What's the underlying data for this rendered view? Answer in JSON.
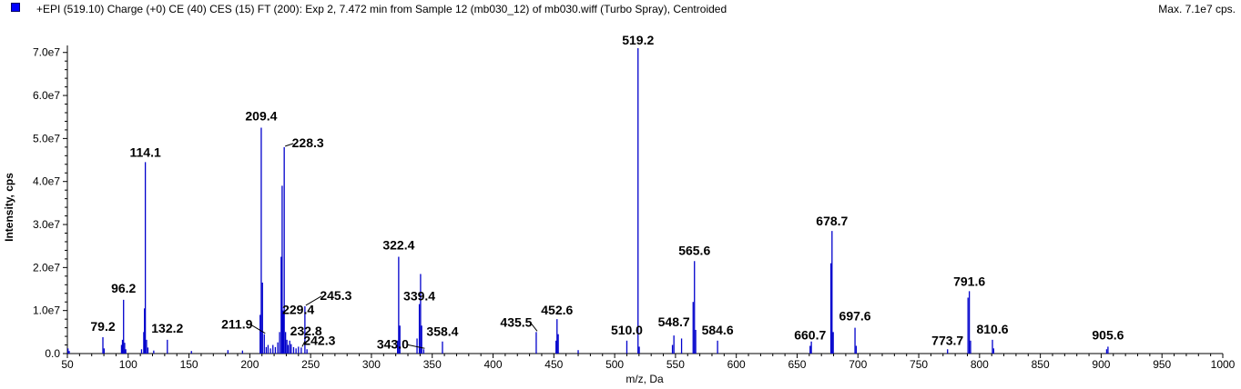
{
  "header": {
    "title": "+EPI (519.10) Charge (+0) CE (40) CES (15) FT (200): Exp 2, 7.472 min from Sample 12 (mb030_12) of mb030.wiff (Turbo Spray), Centroided",
    "max_label": "Max. 7.1e7 cps.",
    "legend_color": "#0000ff"
  },
  "chart_data": {
    "type": "bar",
    "xlabel": "m/z, Da",
    "ylabel": "Intensity, cps",
    "xlim": [
      50,
      1000
    ],
    "ylim": [
      0,
      71000000.0
    ],
    "bar_color": "#0000cc",
    "x_ticks": [
      50,
      100,
      150,
      200,
      250,
      300,
      350,
      400,
      450,
      500,
      550,
      600,
      650,
      700,
      750,
      800,
      850,
      900,
      950,
      1000
    ],
    "x_tick_labels": [
      "50",
      "100",
      "150",
      "200",
      "250",
      "300",
      "350",
      "400",
      "450",
      "500",
      "550",
      "600",
      "650",
      "700",
      "750",
      "800",
      "850",
      "900",
      "950",
      "1000"
    ],
    "y_ticks": [
      0,
      10000000.0,
      20000000.0,
      30000000.0,
      40000000.0,
      50000000.0,
      60000000.0,
      70000000.0
    ],
    "y_tick_labels": [
      "0.0",
      "1.0e7",
      "2.0e7",
      "3.0e7",
      "4.0e7",
      "5.0e7",
      "6.0e7",
      "7.0e7"
    ],
    "peaks": [
      {
        "mz": 50.5,
        "intensity": 1200000.0
      },
      {
        "mz": 51.5,
        "intensity": 600000.0
      },
      {
        "mz": 79.2,
        "intensity": 3800000.0
      },
      {
        "mz": 80.2,
        "intensity": 1200000.0
      },
      {
        "mz": 94.5,
        "intensity": 2000000.0
      },
      {
        "mz": 95.3,
        "intensity": 3200000.0
      },
      {
        "mz": 96.2,
        "intensity": 12500000.0
      },
      {
        "mz": 97.1,
        "intensity": 2500000.0
      },
      {
        "mz": 98.0,
        "intensity": 1000000.0
      },
      {
        "mz": 111.0,
        "intensity": 1000000.0
      },
      {
        "mz": 112.8,
        "intensity": 5000000.0
      },
      {
        "mz": 113.4,
        "intensity": 10500000.0
      },
      {
        "mz": 114.1,
        "intensity": 44500000.0
      },
      {
        "mz": 115.1,
        "intensity": 3200000.0
      },
      {
        "mz": 116.2,
        "intensity": 1400000.0
      },
      {
        "mz": 121.0,
        "intensity": 700000.0
      },
      {
        "mz": 132.2,
        "intensity": 3200000.0
      },
      {
        "mz": 152.0,
        "intensity": 600000.0
      },
      {
        "mz": 182.0,
        "intensity": 800000.0
      },
      {
        "mz": 194.0,
        "intensity": 700000.0
      },
      {
        "mz": 208.5,
        "intensity": 9000000.0
      },
      {
        "mz": 209.4,
        "intensity": 52500000.0
      },
      {
        "mz": 210.4,
        "intensity": 16500000.0
      },
      {
        "mz": 211.9,
        "intensity": 4500000.0
      },
      {
        "mz": 213.5,
        "intensity": 1500000.0
      },
      {
        "mz": 215.0,
        "intensity": 2000000.0
      },
      {
        "mz": 217.0,
        "intensity": 1200000.0
      },
      {
        "mz": 219.0,
        "intensity": 2000000.0
      },
      {
        "mz": 221.0,
        "intensity": 1500000.0
      },
      {
        "mz": 223.0,
        "intensity": 2600000.0
      },
      {
        "mz": 224.5,
        "intensity": 5000000.0
      },
      {
        "mz": 225.8,
        "intensity": 22500000.0
      },
      {
        "mz": 226.6,
        "intensity": 39000000.0
      },
      {
        "mz": 227.4,
        "intensity": 10000000.0
      },
      {
        "mz": 228.3,
        "intensity": 48000000.0
      },
      {
        "mz": 229.4,
        "intensity": 5000000.0
      },
      {
        "mz": 230.5,
        "intensity": 3200000.0
      },
      {
        "mz": 231.5,
        "intensity": 2000000.0
      },
      {
        "mz": 232.8,
        "intensity": 3000000.0
      },
      {
        "mz": 234.0,
        "intensity": 2200000.0
      },
      {
        "mz": 236.0,
        "intensity": 1500000.0
      },
      {
        "mz": 238.0,
        "intensity": 1200000.0
      },
      {
        "mz": 240.0,
        "intensity": 1600000.0
      },
      {
        "mz": 242.3,
        "intensity": 1400000.0
      },
      {
        "mz": 245.3,
        "intensity": 11000000.0
      },
      {
        "mz": 247.0,
        "intensity": 1000000.0
      },
      {
        "mz": 321.5,
        "intensity": 3000000.0
      },
      {
        "mz": 322.4,
        "intensity": 22500000.0
      },
      {
        "mz": 323.4,
        "intensity": 6500000.0
      },
      {
        "mz": 337.5,
        "intensity": 3500000.0
      },
      {
        "mz": 339.4,
        "intensity": 11500000.0
      },
      {
        "mz": 340.4,
        "intensity": 18500000.0
      },
      {
        "mz": 341.3,
        "intensity": 6500000.0
      },
      {
        "mz": 343.0,
        "intensity": 1000000.0
      },
      {
        "mz": 358.4,
        "intensity": 2800000.0
      },
      {
        "mz": 435.5,
        "intensity": 5000000.0
      },
      {
        "mz": 451.8,
        "intensity": 3000000.0
      },
      {
        "mz": 452.6,
        "intensity": 8000000.0
      },
      {
        "mz": 453.6,
        "intensity": 4500000.0
      },
      {
        "mz": 470.0,
        "intensity": 800000.0
      },
      {
        "mz": 510.0,
        "intensity": 3000000.0
      },
      {
        "mz": 519.2,
        "intensity": 71000000.0
      },
      {
        "mz": 520.2,
        "intensity": 1600000.0
      },
      {
        "mz": 547.5,
        "intensity": 2000000.0
      },
      {
        "mz": 548.7,
        "intensity": 4200000.0
      },
      {
        "mz": 555.0,
        "intensity": 3500000.0
      },
      {
        "mz": 564.5,
        "intensity": 12000000.0
      },
      {
        "mz": 565.6,
        "intensity": 21500000.0
      },
      {
        "mz": 566.6,
        "intensity": 5500000.0
      },
      {
        "mz": 584.6,
        "intensity": 3000000.0
      },
      {
        "mz": 660.7,
        "intensity": 1800000.0
      },
      {
        "mz": 661.7,
        "intensity": 2800000.0
      },
      {
        "mz": 677.8,
        "intensity": 21000000.0
      },
      {
        "mz": 678.7,
        "intensity": 28500000.0
      },
      {
        "mz": 679.7,
        "intensity": 5000000.0
      },
      {
        "mz": 697.6,
        "intensity": 6000000.0
      },
      {
        "mz": 698.6,
        "intensity": 1800000.0
      },
      {
        "mz": 773.7,
        "intensity": 1000000.0
      },
      {
        "mz": 790.5,
        "intensity": 13000000.0
      },
      {
        "mz": 791.6,
        "intensity": 14500000.0
      },
      {
        "mz": 792.6,
        "intensity": 3000000.0
      },
      {
        "mz": 810.6,
        "intensity": 3200000.0
      },
      {
        "mz": 811.6,
        "intensity": 1200000.0
      },
      {
        "mz": 904.5,
        "intensity": 1000000.0
      },
      {
        "mz": 905.6,
        "intensity": 1600000.0
      }
    ],
    "peak_labels": [
      {
        "text": "79.2",
        "mz": 79.2,
        "intensity": 3800000.0
      },
      {
        "text": "96.2",
        "mz": 96.2,
        "intensity": 12500000.0
      },
      {
        "text": "114.1",
        "mz": 114.1,
        "intensity": 44500000.0
      },
      {
        "text": "132.2",
        "mz": 132.2,
        "intensity": 3200000.0
      },
      {
        "text": "209.4",
        "mz": 209.4,
        "intensity": 52500000.0
      },
      {
        "text": "211.9",
        "mz": 211.9,
        "intensity": 4500000.0
      },
      {
        "text": "228.3",
        "mz": 228.3,
        "intensity": 48000000.0
      },
      {
        "text": "229.4",
        "mz": 229.4,
        "intensity": 5000000.0
      },
      {
        "text": "232.8",
        "mz": 232.8,
        "intensity": 3000000.0
      },
      {
        "text": "242.3",
        "mz": 242.3,
        "intensity": 1400000.0
      },
      {
        "text": "245.3",
        "mz": 245.3,
        "intensity": 11000000.0
      },
      {
        "text": "322.4",
        "mz": 322.4,
        "intensity": 22500000.0
      },
      {
        "text": "339.4",
        "mz": 339.4,
        "intensity": 11500000.0
      },
      {
        "text": "343.0",
        "mz": 343.0,
        "intensity": 1000000.0
      },
      {
        "text": "358.4",
        "mz": 358.4,
        "intensity": 2800000.0
      },
      {
        "text": "435.5",
        "mz": 435.5,
        "intensity": 5000000.0
      },
      {
        "text": "452.6",
        "mz": 452.6,
        "intensity": 8000000.0
      },
      {
        "text": "510.0",
        "mz": 510.0,
        "intensity": 3000000.0
      },
      {
        "text": "519.2",
        "mz": 519.2,
        "intensity": 71000000.0
      },
      {
        "text": "548.7",
        "mz": 548.7,
        "intensity": 4200000.0
      },
      {
        "text": "565.6",
        "mz": 565.6,
        "intensity": 21500000.0
      },
      {
        "text": "584.6",
        "mz": 584.6,
        "intensity": 3000000.0
      },
      {
        "text": "660.7",
        "mz": 660.7,
        "intensity": 1800000.0
      },
      {
        "text": "678.7",
        "mz": 678.7,
        "intensity": 28500000.0
      },
      {
        "text": "697.6",
        "mz": 697.6,
        "intensity": 6000000.0
      },
      {
        "text": "773.7",
        "mz": 773.7,
        "intensity": 1000000.0
      },
      {
        "text": "791.6",
        "mz": 791.6,
        "intensity": 14500000.0
      },
      {
        "text": "810.6",
        "mz": 810.6,
        "intensity": 3200000.0
      },
      {
        "text": "905.6",
        "mz": 905.6,
        "intensity": 1600000.0
      }
    ]
  }
}
